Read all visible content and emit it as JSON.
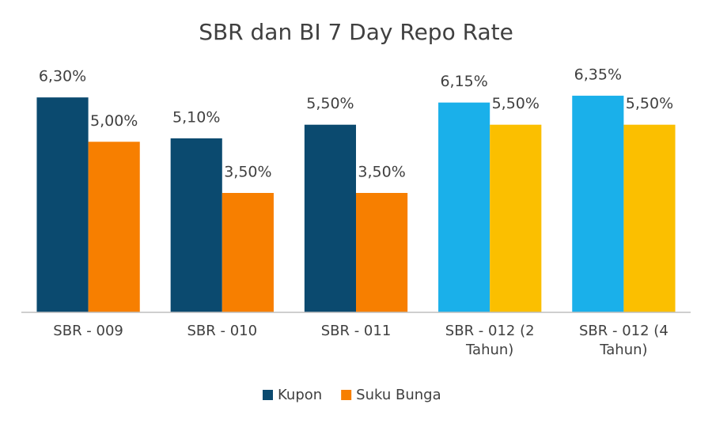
{
  "chart_data": {
    "type": "bar",
    "title": "SBR dan BI 7 Day Repo Rate",
    "categories": [
      "SBR - 009",
      "SBR - 010",
      "SBR - 011",
      "SBR - 012 (2 Tahun)",
      "SBR - 012 (4 Tahun)"
    ],
    "series": [
      {
        "name": "Kupon",
        "color": "#0b4a6f",
        "colors": [
          "#0b4a6f",
          "#0b4a6f",
          "#0b4a6f",
          "#1ab0ea",
          "#1ab0ea"
        ],
        "values": [
          6.3,
          5.1,
          5.5,
          6.15,
          6.35
        ],
        "value_labels": [
          "6,30%",
          "5,10%",
          "5,50%",
          "6,15%",
          "6,35%"
        ]
      },
      {
        "name": "Suku Bunga",
        "color": "#f77f00",
        "colors": [
          "#f77f00",
          "#f77f00",
          "#f77f00",
          "#fbbf00",
          "#fbbf00"
        ],
        "values": [
          5.0,
          3.5,
          3.5,
          5.5,
          5.5
        ],
        "value_labels": [
          "5,00%",
          "3,50%",
          "3,50%",
          "5,50%",
          "5,50%"
        ]
      }
    ],
    "ylim": [
      0,
      7
    ],
    "legend": "bottom"
  }
}
